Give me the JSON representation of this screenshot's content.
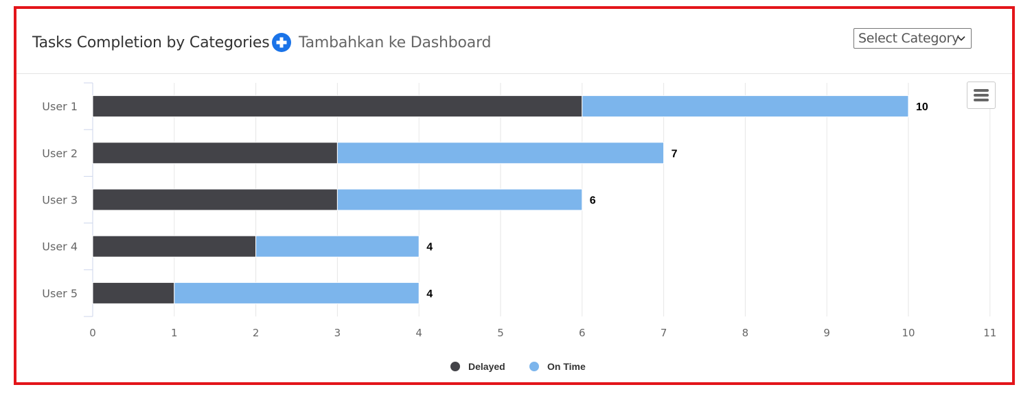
{
  "header": {
    "title": "Tasks Completion by Categories",
    "add_label": "Tambahkan ke Dashboard",
    "select_label": "Select Category"
  },
  "colors": {
    "delayed": "#434348",
    "on_time": "#7cb5ec",
    "frame": "#e3151a",
    "add_icon": "#1a73e8"
  },
  "icons": {
    "add": "plus-circle-icon",
    "select": "chevron-down-icon",
    "menu": "hamburger-menu-icon"
  },
  "chart_data": {
    "type": "bar",
    "orientation": "horizontal",
    "stacked": true,
    "categories": [
      "User 1",
      "User 2",
      "User 3",
      "User 4",
      "User 5"
    ],
    "series": [
      {
        "name": "Delayed",
        "values": [
          6,
          3,
          3,
          2,
          1
        ]
      },
      {
        "name": "On Time",
        "values": [
          4,
          4,
          3,
          2,
          3
        ]
      }
    ],
    "totals": [
      10,
      7,
      6,
      4,
      4
    ],
    "x_ticks": [
      "0",
      "1",
      "2",
      "3",
      "4",
      "5",
      "6",
      "7",
      "8",
      "9",
      "10",
      "11"
    ],
    "xlim": [
      0,
      11
    ],
    "grid": true,
    "legend": "bottom-center",
    "title": "",
    "xlabel": "",
    "ylabel": ""
  }
}
